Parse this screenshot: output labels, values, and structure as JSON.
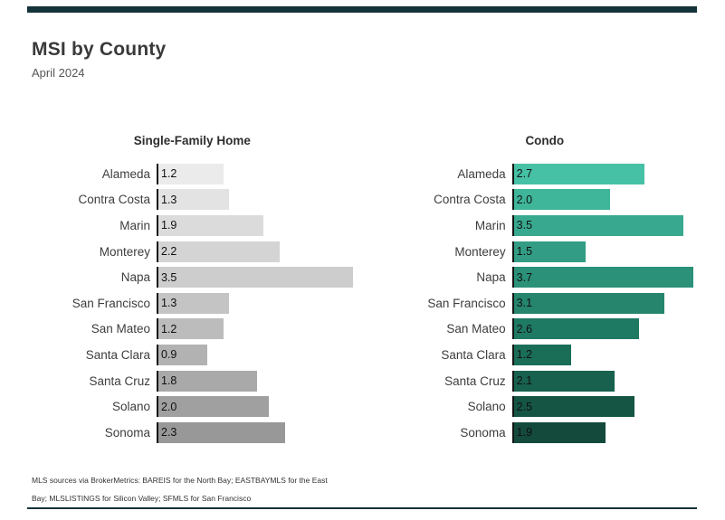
{
  "header": {
    "title": "MSI by County",
    "subtitle": "April 2024"
  },
  "footer": {
    "line1": "MLS sources via BrokerMetrics: BAREIS for the North Bay; EASTBAYMLS for the East",
    "line2": "Bay; MLSLISTINGS for Silicon Valley; SFMLS for San Francisco"
  },
  "colors": {
    "rule": "#15333a",
    "page_background": "#ffffff",
    "text_dark": "#3a3a3a"
  },
  "chart_data": [
    {
      "type": "bar",
      "orientation": "horizontal",
      "title": "Single-Family Home",
      "categories": [
        "Alameda",
        "Contra Costa",
        "Marin",
        "Monterey",
        "Napa",
        "San Francisco",
        "San Mateo",
        "Santa Clara",
        "Santa Cruz",
        "Solano",
        "Sonoma"
      ],
      "values": [
        1.2,
        1.3,
        1.9,
        2.2,
        3.5,
        1.3,
        1.2,
        0.9,
        1.8,
        2.0,
        2.3
      ],
      "xlim": [
        0,
        3.5
      ],
      "grid": false,
      "legend": "none",
      "bar_colors": [
        "#ebebeb",
        "#e3e3e3",
        "#dbdbdb",
        "#d4d4d4",
        "#cdcdcd",
        "#c4c4c4",
        "#bcbcbc",
        "#b2b2b2",
        "#a9a9a9",
        "#a0a0a0",
        "#989898"
      ]
    },
    {
      "type": "bar",
      "orientation": "horizontal",
      "title": "Condo",
      "categories": [
        "Alameda",
        "Contra Costa",
        "Marin",
        "Monterey",
        "Napa",
        "San Francisco",
        "San Mateo",
        "Santa Clara",
        "Santa Cruz",
        "Solano",
        "Sonoma"
      ],
      "values": [
        2.7,
        2.0,
        3.5,
        1.5,
        3.7,
        3.1,
        2.6,
        1.2,
        2.1,
        2.5,
        1.9
      ],
      "xlim": [
        0,
        3.7
      ],
      "grid": false,
      "legend": "none",
      "bar_colors": [
        "#46c1a6",
        "#3fb59a",
        "#38a98f",
        "#329d84",
        "#2b9178",
        "#25856d",
        "#1f7a63",
        "#1a6e58",
        "#17614e",
        "#155544",
        "#134a3c"
      ]
    }
  ]
}
